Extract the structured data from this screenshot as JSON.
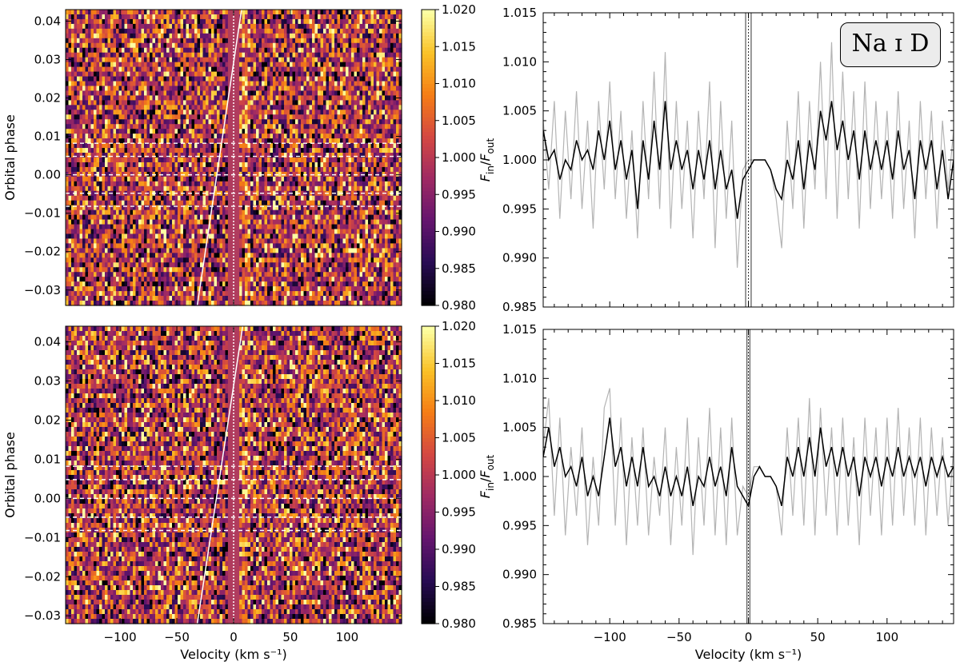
{
  "chart_data": [
    {
      "type": "heatmap",
      "panel": "top-left",
      "xlabel": "",
      "ylabel": "Orbital phase",
      "xlim": [
        -148,
        148
      ],
      "ylim": [
        -0.034,
        0.043
      ],
      "xticks": [
        -100,
        -50,
        0,
        50,
        100
      ],
      "xticklabels": [
        "",
        "",
        "",
        "",
        ""
      ],
      "yticks": [
        -0.03,
        -0.02,
        -0.01,
        0.0,
        0.01,
        0.02,
        0.03,
        0.04
      ],
      "yticklabels": [
        "−0.03",
        "−0.02",
        "−0.01",
        "0.00",
        "0.01",
        "0.02",
        "0.03",
        "0.04"
      ],
      "colormap": "inferno",
      "colorbar_range": [
        0.98,
        1.02
      ],
      "colorbar_ticks": [
        "0.980",
        "0.985",
        "0.990",
        "0.995",
        "1.000",
        "1.005",
        "1.010",
        "1.015",
        "1.020"
      ],
      "masked_band": [
        -5,
        5
      ],
      "transit_contacts_phase": [
        -0.0082,
        -0.0048,
        0.0048,
        0.0082
      ],
      "mid_transit_phase": 0.0,
      "planet_trail": {
        "phase": [
          -0.034,
          0.043
        ],
        "velocity": [
          -32,
          7
        ]
      },
      "zero_velocity_marker": 0
    },
    {
      "type": "line",
      "panel": "top-right",
      "xlabel": "",
      "ylabel": "F_in/F_out",
      "xlim": [
        -148,
        148
      ],
      "ylim": [
        0.985,
        1.015
      ],
      "xticks": [
        -100,
        -50,
        0,
        50,
        100
      ],
      "xticklabels": [
        "",
        "",
        "",
        "",
        ""
      ],
      "yticks": [
        0.985,
        0.99,
        0.995,
        1.0,
        1.005,
        1.01,
        1.015
      ],
      "yticklabels": [
        "0.985",
        "0.990",
        "0.995",
        "1.000",
        "1.005",
        "1.010",
        "1.015"
      ],
      "annotation": "Na ɪ D",
      "masked_band": [
        -5,
        5
      ],
      "vlines": [
        -2,
        0,
        2
      ],
      "series": [
        {
          "style": "raw",
          "color": "#b4b4b4",
          "x": [
            -148,
            -144,
            -140,
            -136,
            -132,
            -128,
            -124,
            -120,
            -116,
            -112,
            -108,
            -104,
            -100,
            -96,
            -92,
            -88,
            -84,
            -80,
            -76,
            -72,
            -68,
            -64,
            -60,
            -56,
            -52,
            -48,
            -44,
            -40,
            -36,
            -32,
            -28,
            -24,
            -20,
            -16,
            -12,
            -8,
            -4,
            0,
            4,
            8,
            12,
            16,
            20,
            24,
            28,
            32,
            36,
            40,
            44,
            48,
            52,
            56,
            60,
            64,
            68,
            72,
            76,
            80,
            84,
            88,
            92,
            96,
            100,
            104,
            108,
            112,
            116,
            120,
            124,
            128,
            132,
            136,
            140,
            144,
            148
          ],
          "y": [
            1.004,
            0.997,
            1.006,
            0.994,
            1.005,
            0.996,
            1.007,
            0.995,
            1.004,
            0.993,
            1.006,
            0.997,
            1.008,
            0.996,
            1.005,
            0.994,
            1.003,
            0.992,
            1.006,
            0.996,
            1.009,
            0.995,
            1.011,
            0.993,
            1.006,
            0.995,
            1.004,
            0.992,
            1.005,
            0.996,
            1.008,
            0.991,
            1.006,
            0.994,
            1.004,
            0.989,
            0.999,
            1.0,
            1.0,
            1.0,
            1.0,
            0.999,
            0.996,
            0.991,
            1.004,
            0.995,
            1.007,
            0.993,
            1.006,
            0.997,
            1.01,
            0.996,
            1.012,
            0.994,
            1.009,
            0.996,
            1.007,
            0.993,
            1.008,
            0.995,
            1.006,
            0.996,
            1.005,
            0.994,
            1.007,
            0.995,
            1.004,
            0.992,
            1.006,
            0.996,
            1.005,
            0.993,
            1.004,
            0.997,
            1.003
          ]
        },
        {
          "style": "binned",
          "color": "#000000",
          "x": [
            -148,
            -144,
            -140,
            -136,
            -132,
            -128,
            -124,
            -120,
            -116,
            -112,
            -108,
            -104,
            -100,
            -96,
            -92,
            -88,
            -84,
            -80,
            -76,
            -72,
            -68,
            -64,
            -60,
            -56,
            -52,
            -48,
            -44,
            -40,
            -36,
            -32,
            -28,
            -24,
            -20,
            -16,
            -12,
            -8,
            -4,
            0,
            4,
            8,
            12,
            16,
            20,
            24,
            28,
            32,
            36,
            40,
            44,
            48,
            52,
            56,
            60,
            64,
            68,
            72,
            76,
            80,
            84,
            88,
            92,
            96,
            100,
            104,
            108,
            112,
            116,
            120,
            124,
            128,
            132,
            136,
            140,
            144,
            148
          ],
          "y": [
            1.003,
            1.0,
            1.001,
            0.998,
            1.0,
            0.999,
            1.002,
            1.0,
            1.001,
            0.999,
            1.003,
            1.0,
            1.004,
            0.999,
            1.002,
            0.998,
            1.001,
            0.995,
            1.002,
            0.998,
            1.004,
            0.999,
            1.006,
            0.999,
            1.002,
            0.999,
            1.001,
            0.997,
            1.001,
            0.998,
            1.002,
            0.997,
            1.001,
            0.997,
            0.999,
            0.994,
            0.998,
            0.999,
            1.0,
            1.0,
            1.0,
            0.999,
            0.997,
            0.996,
            1.0,
            0.998,
            1.002,
            0.997,
            1.002,
            0.999,
            1.005,
            1.002,
            1.006,
            1.001,
            1.004,
            1.0,
            1.003,
            0.998,
            1.003,
            0.999,
            1.002,
            0.999,
            1.002,
            0.998,
            1.003,
            0.999,
            1.001,
            0.996,
            1.002,
            0.999,
            1.002,
            0.997,
            1.001,
            0.996,
            1.0
          ]
        }
      ]
    },
    {
      "type": "heatmap",
      "panel": "bottom-left",
      "xlabel": "Velocity (km s⁻¹)",
      "ylabel": "Orbital phase",
      "xlim": [
        -148,
        148
      ],
      "ylim": [
        -0.032,
        0.044
      ],
      "xticks": [
        -100,
        -50,
        0,
        50,
        100
      ],
      "xticklabels": [
        "−100",
        "−50",
        "0",
        "50",
        "100"
      ],
      "yticks": [
        -0.03,
        -0.02,
        -0.01,
        0.0,
        0.01,
        0.02,
        0.03,
        0.04
      ],
      "yticklabels": [
        "−0.03",
        "−0.02",
        "−0.01",
        "0.00",
        "0.01",
        "0.02",
        "0.03",
        "0.04"
      ],
      "colormap": "inferno",
      "colorbar_range": [
        0.98,
        1.02
      ],
      "colorbar_ticks": [
        "0.980",
        "0.985",
        "0.990",
        "0.995",
        "1.000",
        "1.005",
        "1.010",
        "1.015",
        "1.020"
      ],
      "masked_band": [
        -5,
        5
      ],
      "transit_contacts_phase": [
        -0.0082,
        -0.0048,
        0.0048,
        0.0082
      ],
      "mid_transit_phase": 0.0,
      "planet_trail": {
        "phase": [
          -0.032,
          0.044
        ],
        "velocity": [
          -32,
          8
        ]
      },
      "zero_velocity_marker": 0
    },
    {
      "type": "line",
      "panel": "bottom-right",
      "xlabel": "Velocity (km s⁻¹)",
      "ylabel": "F_in/F_out",
      "xlim": [
        -148,
        148
      ],
      "ylim": [
        0.985,
        1.015
      ],
      "xticks": [
        -100,
        -50,
        0,
        50,
        100
      ],
      "xticklabels": [
        "−100",
        "−50",
        "0",
        "50",
        "100"
      ],
      "yticks": [
        0.985,
        0.99,
        0.995,
        1.0,
        1.005,
        1.01,
        1.015
      ],
      "yticklabels": [
        "0.985",
        "0.990",
        "0.995",
        "1.000",
        "1.005",
        "1.010",
        "1.015"
      ],
      "masked_band": [
        -5,
        5
      ],
      "vlines": [
        -1,
        0,
        1
      ],
      "series": [
        {
          "style": "raw",
          "color": "#b4b4b4",
          "x": [
            -148,
            -144,
            -140,
            -136,
            -132,
            -128,
            -124,
            -120,
            -116,
            -112,
            -108,
            -104,
            -100,
            -96,
            -92,
            -88,
            -84,
            -80,
            -76,
            -72,
            -68,
            -64,
            -60,
            -56,
            -52,
            -48,
            -44,
            -40,
            -36,
            -32,
            -28,
            -24,
            -20,
            -16,
            -12,
            -8,
            -4,
            0,
            4,
            8,
            12,
            16,
            20,
            24,
            28,
            32,
            36,
            40,
            44,
            48,
            52,
            56,
            60,
            64,
            68,
            72,
            76,
            80,
            84,
            88,
            92,
            96,
            100,
            104,
            108,
            112,
            116,
            120,
            124,
            128,
            132,
            136,
            140,
            144,
            148
          ],
          "y": [
            1.003,
            1.008,
            0.996,
            1.006,
            0.994,
            1.003,
            0.996,
            1.005,
            0.993,
            1.002,
            0.995,
            1.007,
            1.009,
            0.995,
            1.006,
            0.993,
            1.004,
            0.995,
            1.005,
            0.994,
            1.002,
            0.996,
            1.005,
            0.993,
            1.003,
            0.995,
            1.006,
            0.992,
            1.004,
            0.995,
            1.007,
            0.994,
            1.005,
            0.993,
            1.006,
            0.994,
            0.999,
            0.998,
            1.001,
            1.001,
            1.0,
            1.0,
            0.999,
            0.994,
            1.005,
            0.996,
            1.006,
            0.995,
            1.008,
            0.994,
            1.007,
            0.996,
            1.005,
            0.994,
            1.006,
            0.995,
            1.004,
            0.993,
            1.006,
            0.996,
            1.005,
            0.994,
            1.006,
            0.995,
            1.007,
            0.996,
            1.005,
            0.995,
            1.006,
            0.994,
            1.005,
            0.996,
            1.004,
            0.995,
            1.003
          ]
        },
        {
          "style": "binned",
          "color": "#000000",
          "x": [
            -148,
            -144,
            -140,
            -136,
            -132,
            -128,
            -124,
            -120,
            -116,
            -112,
            -108,
            -104,
            -100,
            -96,
            -92,
            -88,
            -84,
            -80,
            -76,
            -72,
            -68,
            -64,
            -60,
            -56,
            -52,
            -48,
            -44,
            -40,
            -36,
            -32,
            -28,
            -24,
            -20,
            -16,
            -12,
            -8,
            -4,
            0,
            4,
            8,
            12,
            16,
            20,
            24,
            28,
            32,
            36,
            40,
            44,
            48,
            52,
            56,
            60,
            64,
            68,
            72,
            76,
            80,
            84,
            88,
            92,
            96,
            100,
            104,
            108,
            112,
            116,
            120,
            124,
            128,
            132,
            136,
            140,
            144,
            148
          ],
          "y": [
            1.002,
            1.005,
            1.001,
            1.003,
            1.0,
            1.001,
            0.999,
            1.002,
            0.998,
            1.0,
            0.998,
            1.002,
            1.006,
            1.001,
            1.003,
            0.999,
            1.002,
            0.999,
            1.003,
            0.999,
            1.0,
            0.998,
            1.001,
            0.998,
            1.0,
            0.998,
            1.001,
            0.997,
            1.0,
            0.999,
            1.002,
            0.999,
            1.001,
            0.998,
            1.003,
            0.999,
            0.998,
            0.997,
            1.0,
            1.001,
            1.0,
            1.0,
            0.999,
            0.997,
            1.002,
            1.0,
            1.003,
            1.0,
            1.004,
            1.0,
            1.005,
            1.001,
            1.003,
            1.0,
            1.003,
            1.0,
            1.002,
            0.998,
            1.002,
            1.0,
            1.002,
            0.999,
            1.002,
            1.0,
            1.003,
            1.0,
            1.002,
            1.0,
            1.002,
            0.999,
            1.002,
            1.0,
            1.002,
            1.0,
            1.001
          ]
        }
      ]
    }
  ]
}
